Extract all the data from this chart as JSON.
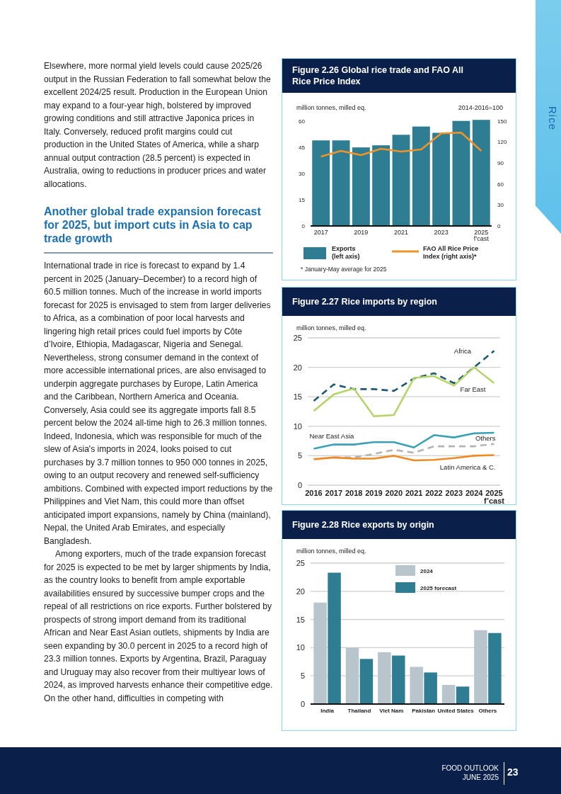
{
  "chart_data": [
    {
      "type": "bar",
      "title": "Figure 2.26 Global rice trade and FAO All Rice Price Index",
      "ylabel": "million tonnes, milled eq.",
      "y2label": "2014-2016=100",
      "categories": [
        "2017",
        null,
        "2019",
        null,
        "2021",
        null,
        "2023",
        null,
        "2025 f’cast"
      ],
      "series": [
        {
          "name": "Exports (left axis)",
          "type": "bar",
          "color": "#2e7d92",
          "values": [
            48.8,
            48.8,
            44.8,
            46.0,
            52.0,
            56.7,
            53.1,
            59.9,
            60.5
          ]
        },
        {
          "name": "FAO All Rice Price Index (right axis)*",
          "type": "line",
          "axis": "y2",
          "color": "#f0932b",
          "values": [
            99,
            107,
            101,
            110,
            106,
            109,
            132,
            133,
            107
          ]
        }
      ],
      "ylim": [
        0,
        61
      ],
      "yticks": [
        0,
        15,
        30,
        45,
        60
      ],
      "y2lim": [
        0,
        152.5
      ],
      "y2ticks": [
        0,
        30,
        60,
        90,
        120,
        150
      ],
      "legend": "bottom",
      "marker": "none",
      "annotations": [
        "* January-May average for 2025"
      ]
    },
    {
      "type": "line",
      "title": "Figure 2.27 Rice imports by region",
      "ylabel": "million tonnes, milled eq.",
      "categories": [
        "2016",
        "2017",
        "2018",
        "2019",
        "2020",
        "2021",
        "2022",
        "2023",
        "2024",
        "2025 f’cast"
      ],
      "series": [
        {
          "name": "Africa",
          "color": "#1f5a70",
          "line_style": "dashed",
          "values": [
            14.3,
            17.1,
            16.3,
            16.3,
            16.0,
            18.1,
            19.0,
            17.3,
            20.0,
            22.8
          ]
        },
        {
          "name": "Far East",
          "color": "#b5d46a",
          "line_style": "solid",
          "values": [
            12.6,
            15.4,
            16.4,
            11.7,
            11.9,
            18.2,
            18.5,
            16.9,
            20.0,
            17.3
          ]
        },
        {
          "name": "Near East Asia",
          "color": "#3aa0b5",
          "line_style": "solid",
          "values": [
            6.2,
            6.9,
            6.9,
            7.3,
            7.3,
            6.4,
            8.5,
            8.1,
            8.8,
            8.9
          ]
        },
        {
          "name": "Others",
          "color": "#b4b4b4",
          "line_style": "dashed",
          "values": [
            null,
            4.7,
            4.7,
            5.3,
            6.0,
            5.5,
            6.6,
            6.6,
            6.6,
            7.0
          ]
        },
        {
          "name": "Latin America & C.",
          "color": "#f08a24",
          "line_style": "solid",
          "values": [
            4.4,
            4.7,
            4.5,
            4.5,
            5.0,
            4.2,
            4.3,
            4.6,
            5.0,
            5.1
          ]
        }
      ],
      "ylim": [
        0,
        25
      ],
      "yticks": [
        0,
        5,
        10,
        15,
        20,
        25
      ],
      "grid": "y",
      "legend": false,
      "marker": "none"
    },
    {
      "type": "bar",
      "title": "Figure 2.28 Rice exports by origin",
      "ylabel": "million tonnes, milled eq.",
      "categories": [
        "India",
        "Thailand",
        "Viet Nam",
        "Pakistan",
        "United States",
        "Others"
      ],
      "series": [
        {
          "name": "2024",
          "color": "#b8c5cc",
          "values": [
            18.0,
            10.0,
            9.2,
            6.6,
            3.4,
            13.1
          ]
        },
        {
          "name": "2025 forecast",
          "color": "#2e7d92",
          "values": [
            23.3,
            8.0,
            8.6,
            5.6,
            3.1,
            12.6
          ]
        }
      ],
      "ylim": [
        0,
        25
      ],
      "yticks": [
        0,
        5,
        10,
        15,
        20,
        25
      ],
      "grid": "y",
      "legend": "top"
    },
    {
      "type": "other",
      "title": "Another global trade expansion forecast for 2025, but import cuts in Asia to cap trade growth",
      "annotations": [
        "Elsewhere, more normal yield levels could cause 2025/26 output in the Russian Federation to fall somewhat below the excellent 2024/25 result. Production in the European Union may expand to a four-year high, bolstered by improved growing conditions and still attractive Japonica prices in Italy. Conversely, reduced profit margins could cut production in the United States of America, while a sharp annual output contraction (28.5 percent) is expected in Australia, owing to reductions in producer prices and water allocations.",
        "International trade in rice is forecast to expand by 1.4 percent in 2025 (January–December) to a record high of 60.5 million tonnes. Much of the increase in world imports forecast for 2025 is envisaged to stem from larger deliveries to Africa, as a combination of poor local harvests and lingering high retail prices could fuel imports by Côte d’Ivoire, Ethiopia, Madagascar, Nigeria and Senegal. Nevertheless, strong consumer demand in the context of more accessible international prices, are also envisaged to underpin aggregate purchases by Europe, Latin America and the Caribbean, Northern America and Oceania. Conversely, Asia could see its aggregate imports fall 8.5 percent below the 2024 all-time high to 26.3 million tonnes. Indeed, Indonesia, which was responsible for much of the slew of Asia's imports in 2024, looks poised to cut purchases by 3.7 million tonnes to 950 000 tonnes in 2025, owing to an output recovery and renewed self-sufficiency ambitions. Combined with expected import reductions by the Philippines and Viet Nam, this could more than offset anticipated import expansions, namely by China (mainland), Nepal, the United Arab Emirates, and especially Bangladesh.",
        "Among exporters, much of the trade expansion forecast for 2025 is expected to be met by larger shipments by India, as the country looks to benefit from ample exportable availabilities ensured by successive bumper crops and the repeal of all restrictions on rice exports. Further bolstered by prospects of strong import demand from its traditional African and Near East Asian outlets, shipments by India are seen expanding by 30.0 percent in 2025 to a record high of 23.3 million tonnes. Exports by Argentina, Brazil, Paraguay and Uruguay may also recover from their multiyear lows of 2024, as improved harvests enhance their competitive edge. On the other hand, difficulties in competing with"
      ]
    },
    {
      "type": "other",
      "annotations": [
        "Rice",
        "FOOD OUTLOOK",
        "JUNE 2025",
        "23"
      ]
    }
  ]
}
